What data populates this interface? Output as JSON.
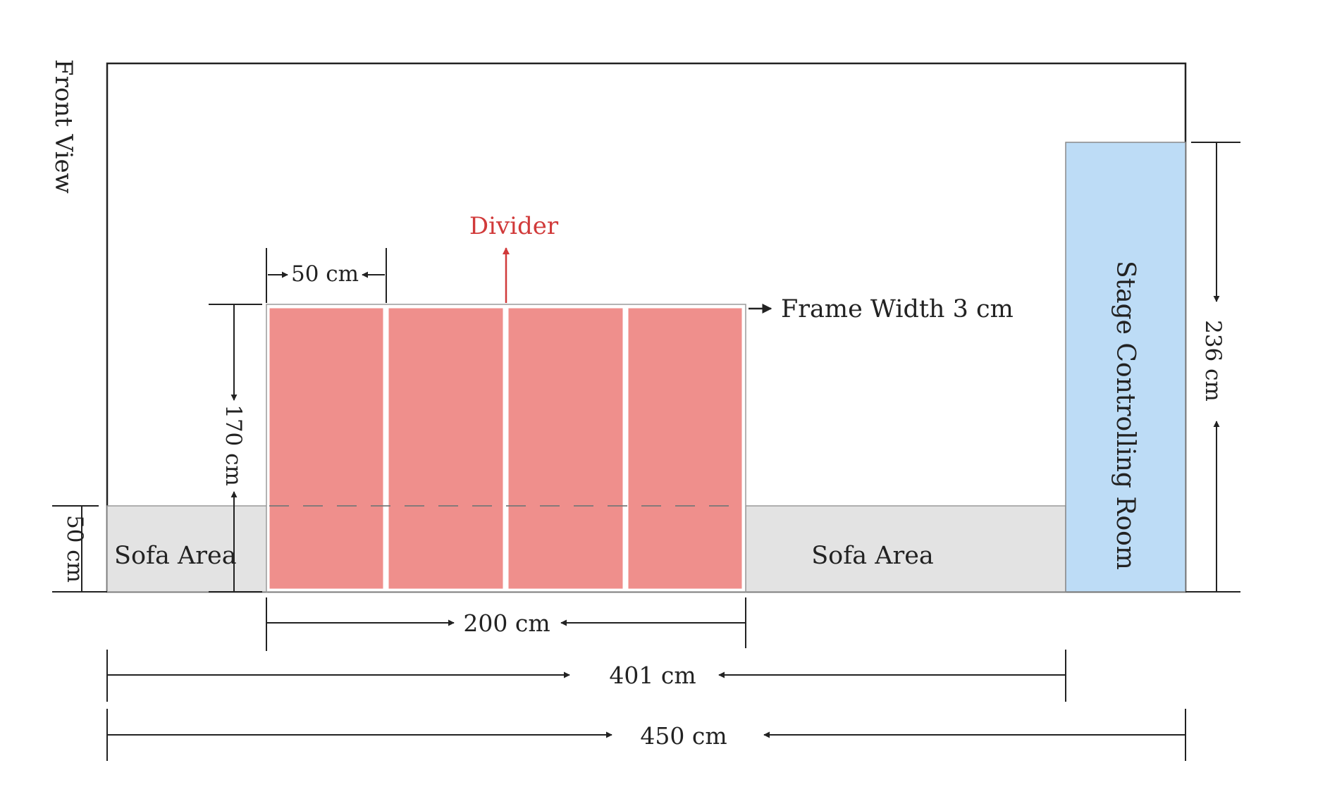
{
  "view_label": "Front View",
  "divider": {
    "label": "Divider",
    "panel_count": 4
  },
  "labels": {
    "frame_width": "Frame Width 3 cm",
    "sofa_left": "Sofa Area",
    "sofa_right": "Sofa Area",
    "stage_room": "Stage Controlling Room"
  },
  "dimensions": {
    "panel_width": "50 cm",
    "divider_height": "170 cm",
    "sofa_height": "50 cm",
    "stage_height": "236 cm",
    "divider_width": "200 cm",
    "inner_width": "401 cm",
    "total_width": "450 cm"
  },
  "colors": {
    "divider_panel": "#ef8f8c",
    "divider_label": "#d13a3a",
    "sofa": "#e3e3e3",
    "stage_room": "#bddcf6",
    "line": "#222222"
  }
}
